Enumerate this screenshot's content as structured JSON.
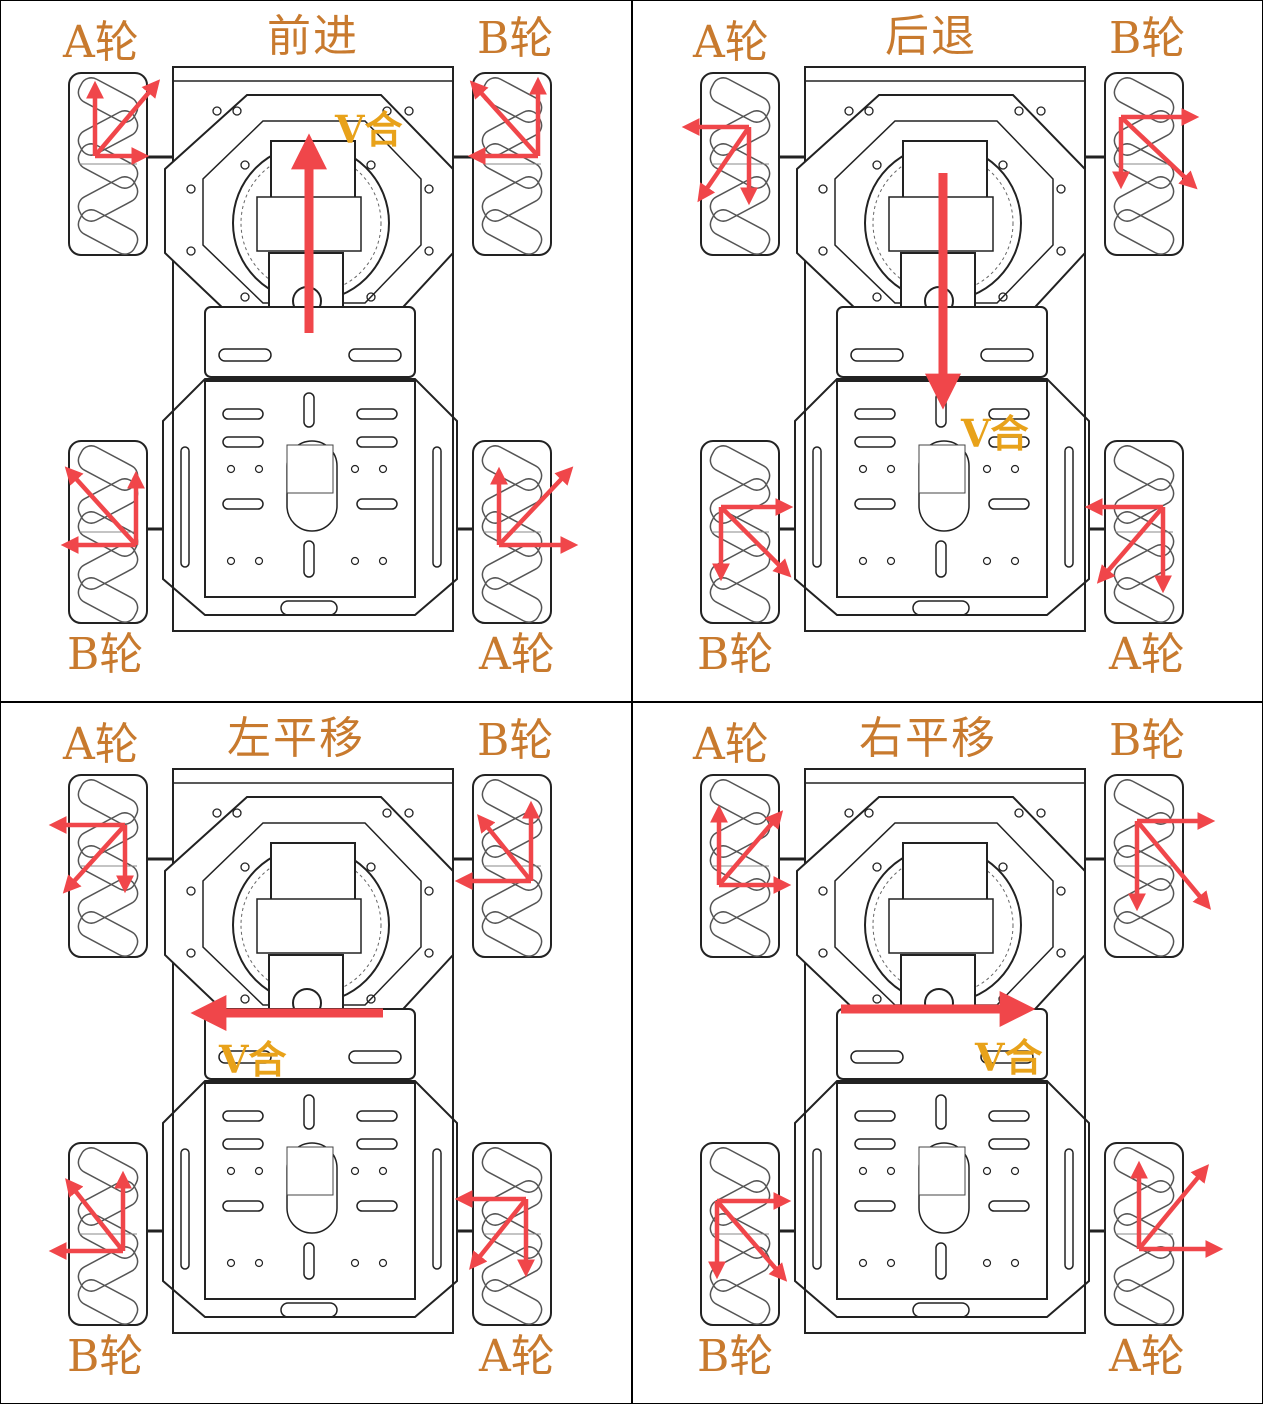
{
  "colors": {
    "label": "#c87a2e",
    "resultant_label": "#e8a21a",
    "arrow": "#f0464a",
    "frame": "#000000"
  },
  "panels": [
    {
      "title": "前进",
      "wheel_a": "A轮",
      "wheel_b": "B轮",
      "resultant": "V合"
    },
    {
      "title": "后退",
      "wheel_a": "A轮",
      "wheel_b": "B轮",
      "resultant": "V合"
    },
    {
      "title": "左平移",
      "wheel_a": "A轮",
      "wheel_b": "B轮",
      "resultant": "V合"
    },
    {
      "title": "右平移",
      "wheel_a": "A轮",
      "wheel_b": "B轮",
      "resultant": "V合"
    }
  ]
}
